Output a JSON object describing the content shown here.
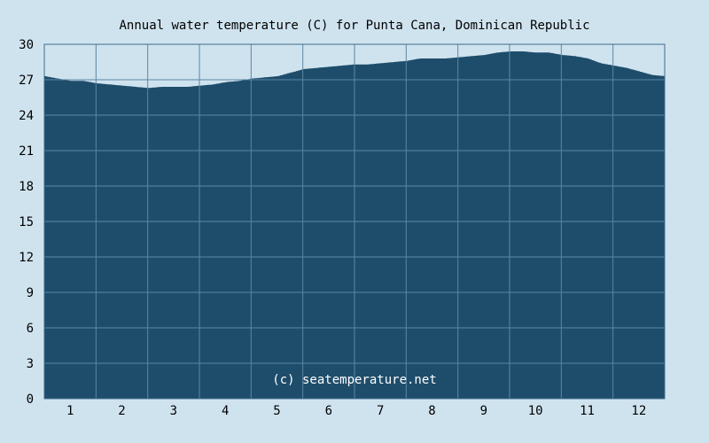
{
  "chart_data": {
    "type": "area",
    "title": "Annual water temperature (C) for Punta Cana, Dominican Republic",
    "watermark": "(c) seatemperature.net",
    "xlabel": "",
    "ylabel": "",
    "x_ticks": [
      "1",
      "2",
      "3",
      "4",
      "5",
      "6",
      "7",
      "8",
      "9",
      "10",
      "11",
      "12"
    ],
    "y_ticks": [
      "0",
      "3",
      "6",
      "9",
      "12",
      "15",
      "18",
      "21",
      "24",
      "27",
      "30"
    ],
    "ylim": [
      0,
      30
    ],
    "xlim": [
      0.5,
      12.5
    ],
    "grid": true,
    "series": [
      {
        "x": [
          0.5,
          0.75,
          1.0,
          1.25,
          1.5,
          1.75,
          2.0,
          2.25,
          2.5,
          2.75,
          3.0,
          3.25,
          3.5,
          3.75,
          4.0,
          4.25,
          4.5,
          4.75,
          5.0,
          5.25,
          5.5,
          5.75,
          6.0,
          6.25,
          6.5,
          6.75,
          7.0,
          7.25,
          7.5,
          7.75,
          8.0,
          8.25,
          8.5,
          8.75,
          9.0,
          9.25,
          9.5,
          9.75,
          10.0,
          10.25,
          10.5,
          10.75,
          11.0,
          11.25,
          11.5,
          11.75,
          12.0,
          12.25,
          12.5
        ],
        "values": [
          27.3,
          27.1,
          26.9,
          26.9,
          26.7,
          26.6,
          26.5,
          26.4,
          26.3,
          26.4,
          26.4,
          26.4,
          26.5,
          26.6,
          26.8,
          26.9,
          27.1,
          27.2,
          27.3,
          27.6,
          27.9,
          28.0,
          28.1,
          28.2,
          28.3,
          28.3,
          28.4,
          28.5,
          28.6,
          28.8,
          28.8,
          28.8,
          28.9,
          29.0,
          29.1,
          29.3,
          29.4,
          29.4,
          29.3,
          29.3,
          29.1,
          29.0,
          28.8,
          28.4,
          28.2,
          28.0,
          27.7,
          27.4,
          27.3
        ]
      }
    ],
    "colors": {
      "area_fill": "#1e4d6b",
      "grid_line": "#5a86a4",
      "background": "#cfe3ef",
      "frame": "#3e6c8c"
    }
  }
}
